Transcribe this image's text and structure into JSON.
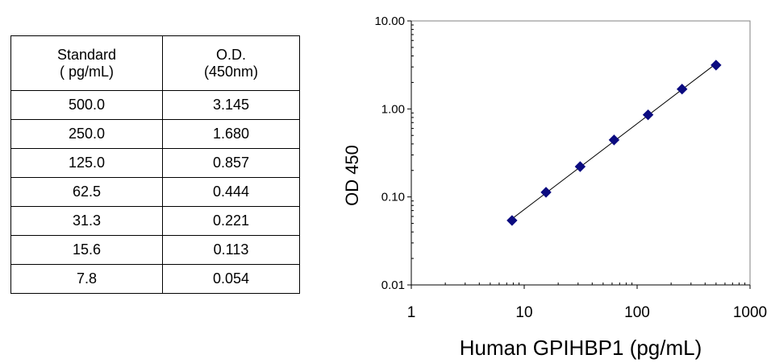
{
  "table": {
    "headers": [
      {
        "line1": "Standard",
        "line2": "( pg/mL)"
      },
      {
        "line1": "O.D.",
        "line2": "(450nm)"
      }
    ],
    "rows": [
      {
        "standard": "500.0",
        "od": "3.145"
      },
      {
        "standard": "250.0",
        "od": "1.680"
      },
      {
        "standard": "125.0",
        "od": "0.857"
      },
      {
        "standard": "62.5",
        "od": "0.444"
      },
      {
        "standard": "31.3",
        "od": "0.221"
      },
      {
        "standard": "15.6",
        "od": "0.113"
      },
      {
        "standard": "7.8",
        "od": "0.054"
      }
    ]
  },
  "chart_data": {
    "type": "scatter",
    "xlabel": "Human GPIHBP1 (pg/mL)",
    "ylabel": "OD 450",
    "x_scale": "log",
    "y_scale": "log",
    "xlim": [
      1,
      1000
    ],
    "ylim": [
      0.01,
      10
    ],
    "x_ticks": [
      "1",
      "10",
      "100",
      "1000"
    ],
    "y_ticks": [
      "0.01",
      "0.10",
      "1.00",
      "10.00"
    ],
    "series": [
      {
        "x": [
          500.0,
          250.0,
          125.0,
          62.5,
          31.3,
          15.6,
          7.8
        ],
        "y": [
          3.145,
          1.68,
          0.857,
          0.444,
          0.221,
          0.113,
          0.054
        ]
      }
    ],
    "trendline": true,
    "marker": "diamond",
    "marker_color": "#0b0b80",
    "grid": false,
    "legend": "none"
  }
}
